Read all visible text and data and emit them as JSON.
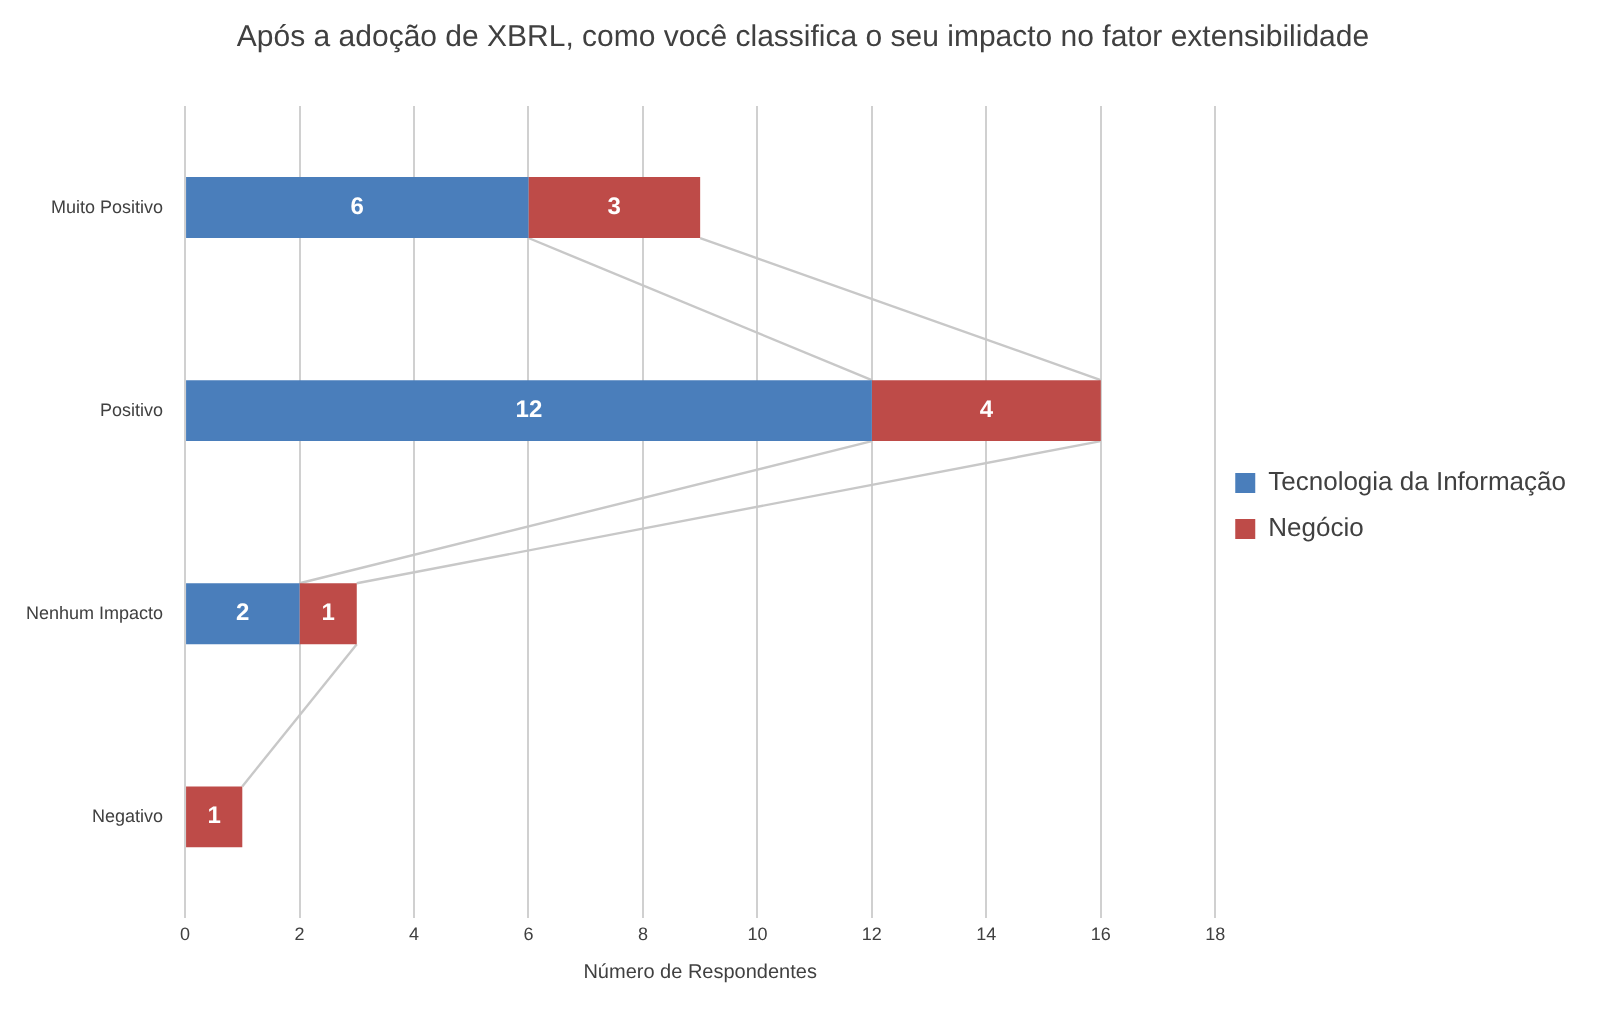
{
  "chart_data": {
    "type": "bar",
    "orientation": "horizontal",
    "stacked": true,
    "title": "Após a adoção de XBRL, como você classifica o seu impacto no fator extensibilidade",
    "xlabel": "Número de Respondentes",
    "categories": [
      "Muito Positivo",
      "Positivo",
      "Nenhum Impacto",
      "Negativo"
    ],
    "series": [
      {
        "name": "Tecnologia da Informação",
        "color": "#4a7ebb",
        "values": [
          6,
          12,
          2,
          0
        ],
        "value_labels": [
          "6",
          "12",
          "2",
          null
        ]
      },
      {
        "name": "Negócio",
        "color": "#be4b48",
        "values": [
          3,
          4,
          1,
          1
        ],
        "value_labels": [
          "3",
          "4",
          "1",
          "1"
        ]
      }
    ],
    "xlim": [
      0,
      18
    ],
    "xticks": [
      0,
      2,
      4,
      6,
      8,
      10,
      12,
      14,
      16,
      18
    ],
    "grid": "x",
    "legend": "right"
  }
}
